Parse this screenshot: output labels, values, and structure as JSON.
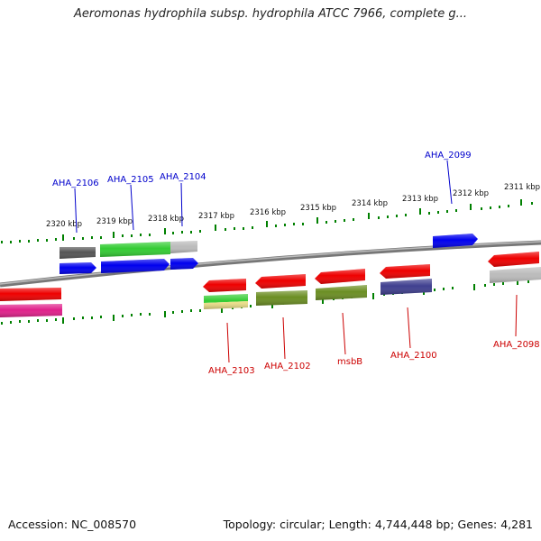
{
  "title": "Aeromonas hydrophila subsp. hydrophila ATCC 7966, complete g...",
  "accession": "Accession: NC_008570",
  "topology": "Topology: circular; Length: 4,744,448 bp; Genes: 4,281",
  "scale_labels": [
    "2320 kbp",
    "2319 kbp",
    "2318 kbp",
    "2317 kbp",
    "2316 kbp",
    "2315 kbp",
    "2314 kbp",
    "2313 kbp",
    "2312 kbp",
    "2311 kbp"
  ],
  "gene_labels_top": [
    "AHA_2106",
    "AHA_2105",
    "AHA_2104",
    "AHA_2099"
  ],
  "gene_labels_bottom": [
    "AHA_2103",
    "AHA_2102",
    "msbB",
    "AHA_2100",
    "AHA_2098"
  ],
  "colors": {
    "label_top": "#0000cc",
    "label_bottom": "#cc0000",
    "tick": "#008000",
    "backbone": "#888888",
    "red": "#ee0000",
    "blue": "#0000ee",
    "green": "#33cc33",
    "grey": "#bbbbbb",
    "darkgrey": "#555555",
    "magenta": "#e0208a",
    "olive": "#6b8e23",
    "navy": "#3f3f8f",
    "khaki": "#ece08a"
  }
}
